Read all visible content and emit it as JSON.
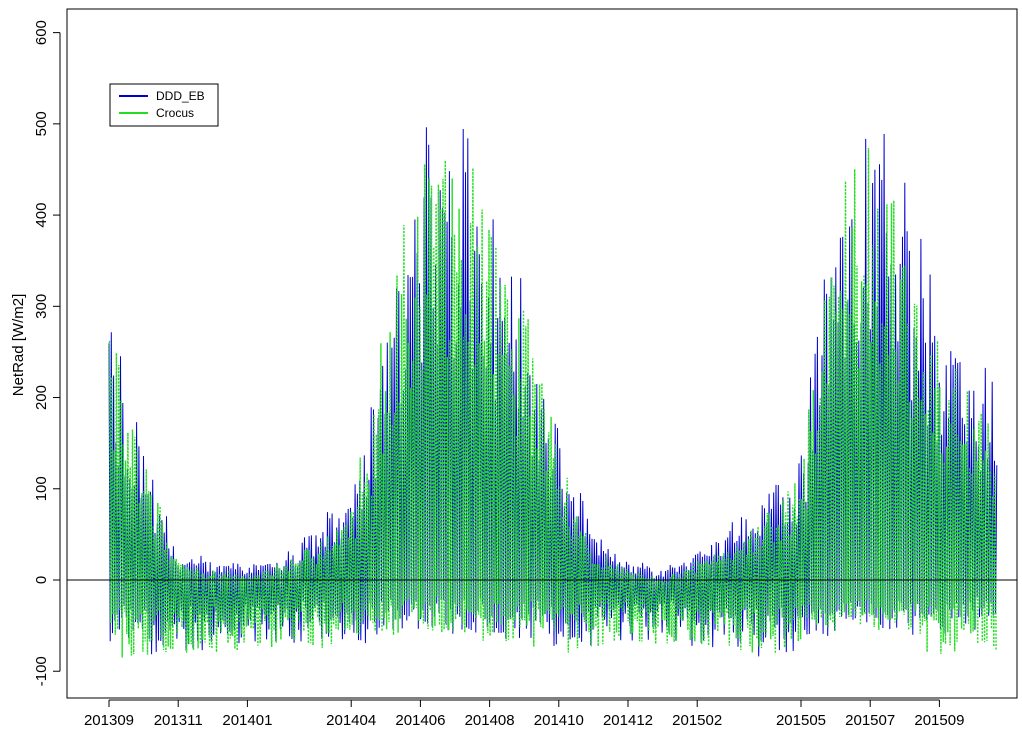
{
  "chart_data": {
    "type": "line",
    "title": "",
    "xlabel": "",
    "ylabel": "NetRad [W/m2]",
    "x_tick_labels": [
      "201309",
      "201311",
      "201401",
      "201404",
      "201406",
      "201408",
      "201410",
      "201412",
      "201502",
      "201505",
      "201507",
      "201509"
    ],
    "x_range": [
      "2013-09",
      "2015-10"
    ],
    "ylim": [
      -100,
      600
    ],
    "y_ticks": [
      -100,
      0,
      100,
      200,
      300,
      400,
      500,
      600
    ],
    "y_tick_labels": [
      "-100",
      "0",
      "100",
      "200",
      "300",
      "400",
      "500",
      "600"
    ],
    "grid": false,
    "zero_line": true,
    "legend_position": "top-left",
    "series": [
      {
        "name": "DDD_EB",
        "color": "#0000cc",
        "style": "solid",
        "envelope_months": [
          "201309",
          "201310",
          "201311",
          "201312",
          "201401",
          "201402",
          "201403",
          "201404",
          "201405",
          "201406",
          "201407",
          "201408",
          "201409",
          "201410",
          "201411",
          "201412",
          "201501",
          "201502",
          "201503",
          "201504",
          "201505",
          "201506",
          "201507",
          "201508",
          "201509",
          "201510"
        ],
        "daily_max": [
          300,
          150,
          30,
          20,
          15,
          25,
          60,
          110,
          250,
          500,
          520,
          440,
          330,
          180,
          50,
          20,
          10,
          30,
          60,
          90,
          140,
          430,
          520,
          440,
          300,
          240
        ],
        "daily_min": [
          -70,
          -80,
          -80,
          -75,
          -75,
          -70,
          -70,
          -90,
          -60,
          -60,
          -60,
          -65,
          -70,
          -75,
          -70,
          -70,
          -65,
          -70,
          -75,
          -90,
          -70,
          -60,
          -55,
          -60,
          -60,
          -60
        ]
      },
      {
        "name": "Crocus",
        "color": "#22dd22",
        "style": "dotted",
        "envelope_months": [
          "201309",
          "201310",
          "201311",
          "201312",
          "201401",
          "201402",
          "201403",
          "201404",
          "201405",
          "201406",
          "201407",
          "201408",
          "201409",
          "201410",
          "201411",
          "201412",
          "201501",
          "201502",
          "201503",
          "201504",
          "201505",
          "201506",
          "201507",
          "201508",
          "201509",
          "201510"
        ],
        "daily_max": [
          290,
          140,
          20,
          10,
          5,
          15,
          40,
          80,
          290,
          500,
          490,
          420,
          330,
          150,
          30,
          10,
          0,
          20,
          40,
          70,
          120,
          450,
          500,
          420,
          280,
          200
        ],
        "daily_min": [
          -90,
          -90,
          -80,
          -80,
          -80,
          -75,
          -75,
          -70,
          -60,
          -55,
          -60,
          -65,
          -70,
          -80,
          -70,
          -75,
          -70,
          -75,
          -80,
          -85,
          -80,
          -65,
          -60,
          -60,
          -90,
          -80
        ]
      }
    ]
  }
}
